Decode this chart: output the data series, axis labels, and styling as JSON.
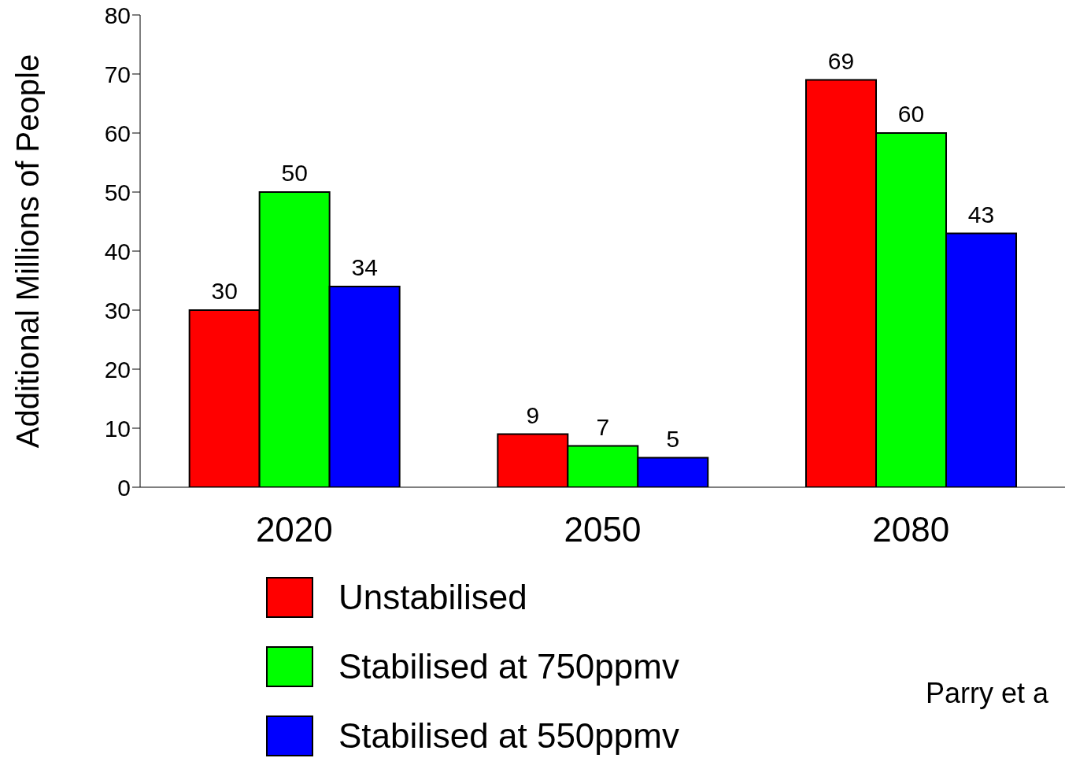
{
  "chart_data": {
    "type": "bar",
    "ylabel": "Additional Millions of People",
    "categories": [
      "2020",
      "2050",
      "2080"
    ],
    "series": [
      {
        "name": "Unstabilised",
        "color": "#ff0000",
        "values": [
          30,
          9,
          69
        ]
      },
      {
        "name": "Stabilised at 750ppmv",
        "color": "#00ff00",
        "values": [
          50,
          7,
          60
        ]
      },
      {
        "name": "Stabilised at 550ppmv",
        "color": "#0000ff",
        "values": [
          34,
          5,
          43
        ]
      }
    ],
    "ylim": [
      0,
      80
    ],
    "yticks": [
      0,
      10,
      20,
      30,
      40,
      50,
      60,
      70,
      80
    ],
    "grid": false,
    "legend": "bottom",
    "data_labels": true,
    "annotations": [
      "Parry et a"
    ]
  }
}
